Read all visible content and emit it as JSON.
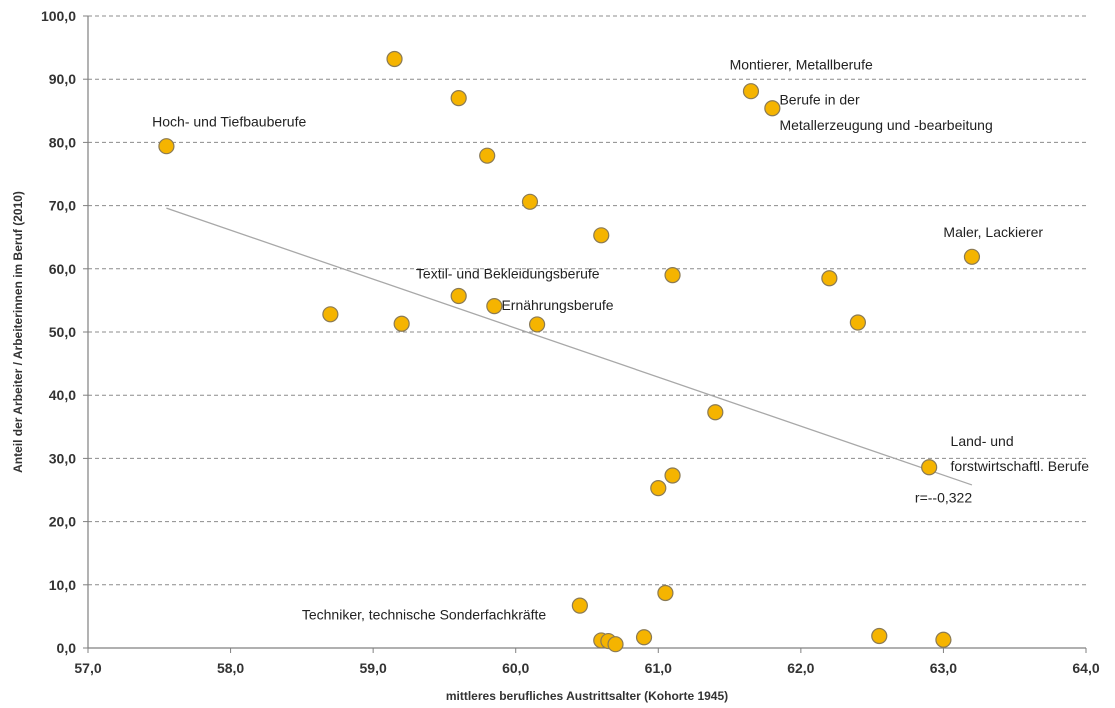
{
  "chart_data": {
    "type": "scatter",
    "xlabel": "mittleres berufliches Austrittsalter (Kohorte 1945)",
    "ylabel": "Anteil der Arbeiter / Arbeiterinnen im Beruf (2010)",
    "xlim": [
      57.0,
      64.0
    ],
    "ylim": [
      0.0,
      100.0
    ],
    "x_ticks": [
      "57,0",
      "58,0",
      "59,0",
      "60,0",
      "61,0",
      "62,0",
      "63,0",
      "64,0"
    ],
    "y_ticks": [
      "0,0",
      "10,0",
      "20,0",
      "30,0",
      "40,0",
      "50,0",
      "60,0",
      "70,0",
      "80,0",
      "90,0",
      "100,0"
    ],
    "grid": "horizontal dashed",
    "legend": "none",
    "point_color": "#f5b400",
    "points": [
      {
        "x": 57.55,
        "y": 79.4
      },
      {
        "x": 58.7,
        "y": 52.8
      },
      {
        "x": 59.15,
        "y": 93.2
      },
      {
        "x": 59.2,
        "y": 51.3
      },
      {
        "x": 59.6,
        "y": 87.0
      },
      {
        "x": 59.6,
        "y": 55.7
      },
      {
        "x": 59.8,
        "y": 77.9
      },
      {
        "x": 59.85,
        "y": 54.1
      },
      {
        "x": 60.1,
        "y": 70.6
      },
      {
        "x": 60.15,
        "y": 51.2
      },
      {
        "x": 60.45,
        "y": 6.7
      },
      {
        "x": 60.6,
        "y": 65.3
      },
      {
        "x": 60.6,
        "y": 1.2
      },
      {
        "x": 60.65,
        "y": 1.1
      },
      {
        "x": 60.7,
        "y": 0.6
      },
      {
        "x": 60.9,
        "y": 1.7
      },
      {
        "x": 61.0,
        "y": 25.3
      },
      {
        "x": 61.05,
        "y": 8.7
      },
      {
        "x": 61.1,
        "y": 59.0
      },
      {
        "x": 61.1,
        "y": 27.3
      },
      {
        "x": 61.4,
        "y": 37.3
      },
      {
        "x": 61.65,
        "y": 88.1
      },
      {
        "x": 61.8,
        "y": 85.4
      },
      {
        "x": 62.2,
        "y": 58.5
      },
      {
        "x": 62.4,
        "y": 51.5
      },
      {
        "x": 62.55,
        "y": 1.9
      },
      {
        "x": 62.9,
        "y": 28.6
      },
      {
        "x": 63.0,
        "y": 1.3
      },
      {
        "x": 63.2,
        "y": 61.9
      }
    ],
    "trendline": {
      "x": [
        57.55,
        63.2
      ],
      "y": [
        69.6,
        25.8
      ]
    },
    "annotations": [
      {
        "text": "Hoch- und Tiefbauberufe",
        "x": 57.45,
        "y": 82.5
      },
      {
        "text": "Montierer, Metallberufe",
        "x": 61.5,
        "y": 91.5
      },
      {
        "text": "Berufe in der",
        "x": 61.85,
        "y": 86.0
      },
      {
        "text": "Metallerzeugung und -bearbeitung",
        "x": 61.85,
        "y": 82.0
      },
      {
        "text": "Maler, Lackierer",
        "x": 63.0,
        "y": 65.0
      },
      {
        "text": "Textil- und Bekleidungsberufe",
        "x": 59.3,
        "y": 58.5
      },
      {
        "text": "Ernährungsberufe",
        "x": 59.9,
        "y": 53.5
      },
      {
        "text": "Land- und",
        "x": 63.05,
        "y": 32.0
      },
      {
        "text": "forstwirtschaftl. Berufe",
        "x": 63.05,
        "y": 28.0
      },
      {
        "text": "r=--0,322",
        "x": 62.8,
        "y": 23.0
      },
      {
        "text": "Techniker, technische Sonderfachkräfte",
        "x": 58.5,
        "y": 4.5
      }
    ]
  }
}
